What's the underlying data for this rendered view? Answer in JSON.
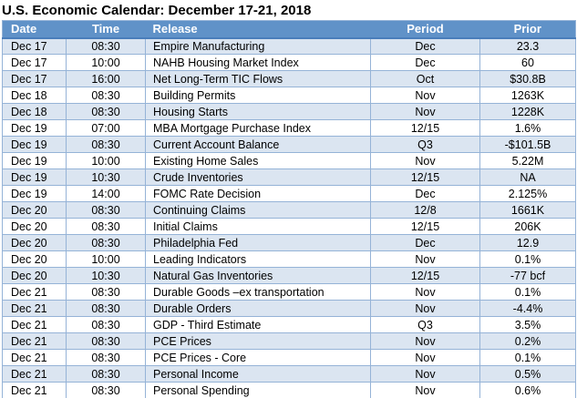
{
  "title": "U.S. Economic Calendar: December 17-21, 2018",
  "colors": {
    "header_bg": "#6092c8",
    "header_text": "#ffffff",
    "band_row_bg": "#dbe5f1",
    "border": "#95b3d7",
    "header_underline": "#4a7ebb",
    "text": "#000000"
  },
  "table": {
    "headers": [
      "Date",
      "Time",
      "Release",
      "Period",
      "Prior"
    ],
    "rows": [
      {
        "date": "Dec 17",
        "time": "08:30",
        "release": "Empire Manufacturing",
        "period": "Dec",
        "prior": "23.3"
      },
      {
        "date": "Dec 17",
        "time": "10:00",
        "release": "NAHB Housing Market Index",
        "period": "Dec",
        "prior": "60"
      },
      {
        "date": "Dec 17",
        "time": "16:00",
        "release": "Net Long-Term TIC Flows",
        "period": "Oct",
        "prior": "$30.8B"
      },
      {
        "date": "Dec 18",
        "time": "08:30",
        "release": "Building Permits",
        "period": "Nov",
        "prior": "1263K"
      },
      {
        "date": "Dec 18",
        "time": "08:30",
        "release": "Housing Starts",
        "period": "Nov",
        "prior": "1228K"
      },
      {
        "date": "Dec 19",
        "time": "07:00",
        "release": "MBA Mortgage Purchase Index",
        "period": "12/15",
        "prior": "1.6%"
      },
      {
        "date": "Dec 19",
        "time": "08:30",
        "release": "Current Account Balance",
        "period": "Q3",
        "prior": "-$101.5B"
      },
      {
        "date": "Dec 19",
        "time": "10:00",
        "release": "Existing Home Sales",
        "period": "Nov",
        "prior": "5.22M"
      },
      {
        "date": "Dec 19",
        "time": "10:30",
        "release": "Crude Inventories",
        "period": "12/15",
        "prior": "NA"
      },
      {
        "date": "Dec 19",
        "time": "14:00",
        "release": "FOMC Rate Decision",
        "period": "Dec",
        "prior": "2.125%"
      },
      {
        "date": "Dec 20",
        "time": "08:30",
        "release": "Continuing Claims",
        "period": "12/8",
        "prior": "1661K"
      },
      {
        "date": "Dec 20",
        "time": "08:30",
        "release": "Initial Claims",
        "period": "12/15",
        "prior": "206K"
      },
      {
        "date": "Dec 20",
        "time": "08:30",
        "release": "Philadelphia Fed",
        "period": "Dec",
        "prior": "12.9"
      },
      {
        "date": "Dec 20",
        "time": "10:00",
        "release": "Leading Indicators",
        "period": "Nov",
        "prior": "0.1%"
      },
      {
        "date": "Dec 20",
        "time": "10:30",
        "release": "Natural Gas Inventories",
        "period": "12/15",
        "prior": "-77 bcf"
      },
      {
        "date": "Dec 21",
        "time": "08:30",
        "release": "Durable Goods –ex transportation",
        "period": "Nov",
        "prior": "0.1%"
      },
      {
        "date": "Dec 21",
        "time": "08:30",
        "release": "Durable Orders",
        "period": "Nov",
        "prior": "-4.4%"
      },
      {
        "date": "Dec 21",
        "time": "08:30",
        "release": "GDP - Third Estimate",
        "period": "Q3",
        "prior": "3.5%"
      },
      {
        "date": "Dec 21",
        "time": "08:30",
        "release": "PCE Prices",
        "period": "Nov",
        "prior": "0.2%"
      },
      {
        "date": "Dec 21",
        "time": "08:30",
        "release": "PCE Prices - Core",
        "period": "Nov",
        "prior": "0.1%"
      },
      {
        "date": "Dec 21",
        "time": "08:30",
        "release": "Personal Income",
        "period": "Nov",
        "prior": "0.5%"
      },
      {
        "date": "Dec 21",
        "time": "08:30",
        "release": "Personal Spending",
        "period": "Nov",
        "prior": "0.6%"
      }
    ]
  }
}
